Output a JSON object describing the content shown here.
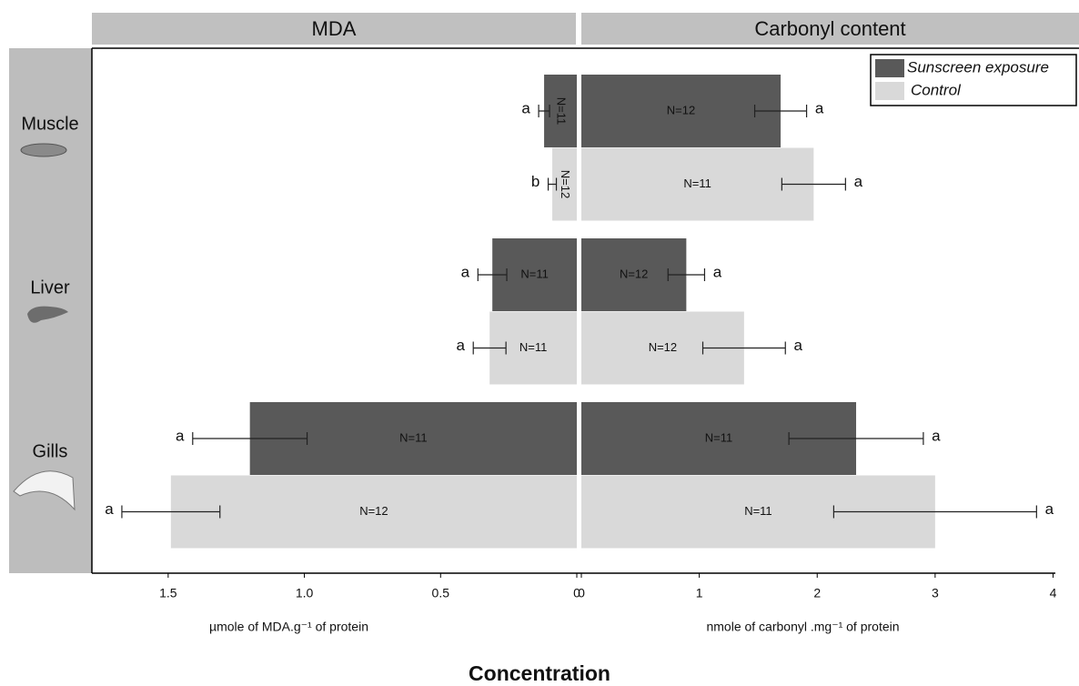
{
  "figure": {
    "xlabel": "Concentration"
  },
  "chart_data": [
    {
      "type": "bar",
      "orientation": "horizontal",
      "x_reversed": true,
      "title": "MDA",
      "xlabel": "µmole of MDA.g⁻¹ of protein",
      "categories": [
        "Muscle",
        "Liver",
        "Gills"
      ],
      "xlim": [
        0,
        1.78
      ],
      "xticks": [
        1.5,
        {
          "value": 1.0,
          "label": "1.0"
        },
        0.5,
        0
      ],
      "series": [
        {
          "color": "#595959",
          "values": [
            0.12,
            0.31,
            1.2
          ],
          "errors": [
            0.02,
            0.053,
            0.21
          ],
          "n_labels": [
            "N=11",
            "N=11",
            "N=11"
          ],
          "letters": [
            "a",
            "a",
            "a"
          ]
        },
        {
          "color": "#d9d9d9",
          "values": [
            0.09,
            0.32,
            1.49
          ],
          "errors": [
            0.015,
            0.06,
            0.18
          ],
          "n_labels": [
            "N=12",
            "N=11",
            "N=12"
          ],
          "letters": [
            "b",
            "a",
            "a"
          ]
        }
      ]
    },
    {
      "type": "bar",
      "orientation": "horizontal",
      "x_reversed": false,
      "title": "Carbonyl content",
      "xlabel": "nmole of carbonyl .mg⁻¹ of protein",
      "xlim": [
        0,
        4.22
      ],
      "xticks": [
        0,
        1,
        2,
        3,
        4
      ],
      "legend": "upper right",
      "series": [
        {
          "name": "Sunscreen exposure",
          "color": "#595959",
          "values": [
            1.69,
            0.89,
            2.33
          ],
          "errors": [
            0.22,
            0.155,
            0.57
          ],
          "n_labels": [
            "N=12",
            "N=12",
            "N=11"
          ],
          "letters": [
            "a",
            "a",
            "a"
          ]
        },
        {
          "name": "Control",
          "color": "#d9d9d9",
          "values": [
            1.97,
            1.38,
            3.0
          ],
          "errors": [
            0.27,
            0.35,
            0.86
          ],
          "n_labels": [
            "N=11",
            "N=12",
            "N=11"
          ],
          "letters": [
            "a",
            "a",
            "a"
          ]
        }
      ]
    }
  ]
}
